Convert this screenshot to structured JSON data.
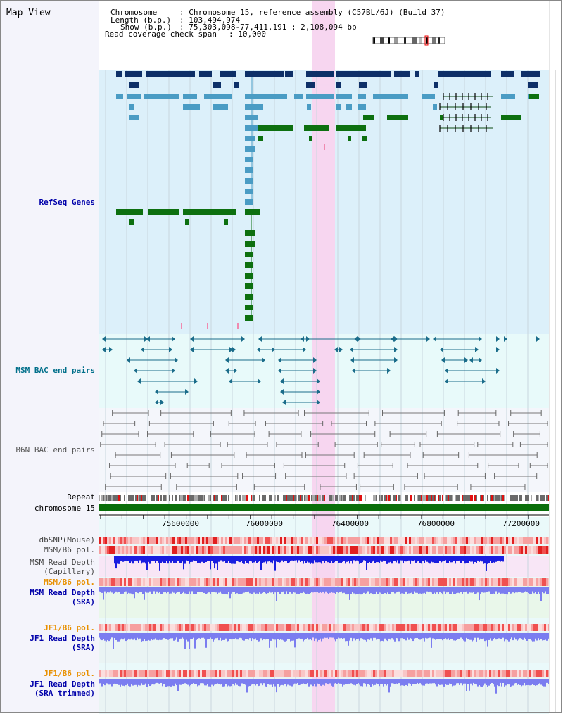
{
  "page": {
    "title": "Map View"
  },
  "info": {
    "chromosome_label": "Chromosome",
    "chromosome_value": ": Chromosome 15, reference assembly (C57BL/6J) (Build 37)",
    "length_label": "Length (b.p.)",
    "length_value": ": 103,494,974",
    "show_label": "Show (b.p.)",
    "show_value": ": 75,303,098-77,411,191 : 2,108,094 bp",
    "coverage_label": "Read coverage check span",
    "coverage_value": ": 10,000"
  },
  "tracks": {
    "refseq": "RefSeq Genes",
    "msm_bac": "MSM BAC end pairs",
    "b6n_bac": "B6N BAC end pairs",
    "repeat": "Repeat",
    "chromosome": "chromosome 15",
    "dbsnp": "dbSNP(Mouse)",
    "msm_b6_pol": "MSM/B6 pol.",
    "msm_read_depth_cap_1": "MSM Read Depth",
    "msm_read_depth_cap_2": "(Capillary)",
    "msm_b6_pol_2": "MSM/B6 pol.",
    "msm_read_depth_sra_1": "MSM Read Depth",
    "msm_read_depth_sra_2": "(SRA)",
    "jf1_b6_pol": "JF1/B6 pol.",
    "jf1_read_depth_sra_1": "JF1 Read Depth",
    "jf1_read_depth_sra_2": "(SRA)",
    "jf1_b6_pol_2": "JF1/B6 pol.",
    "jf1_read_depth_trim_1": "JF1 Read Depth",
    "jf1_read_depth_trim_2": "(SRA trimmed)"
  },
  "axis": {
    "ticks": [
      "75600000",
      "76000000",
      "76400000",
      "76800000",
      "77200000"
    ]
  },
  "colors": {
    "refseq_bg": "#dcf0fa",
    "bac_bg": "#e8fafa",
    "b6n_bg": "#f4f6fb",
    "highlight": "#f7d6f0",
    "gene_dark": "#0e3068",
    "gene_mid": "#4a9cc4",
    "gene_green": "#0d7010",
    "bac_line": "#1a6c8a",
    "b6n_line": "#777777",
    "chrom_green": "#0a6e0a",
    "depth_blue": "#1a1ee0",
    "depth_light": "#7b7df0",
    "label_blue": "#0000aa",
    "label_teal": "#006f8a",
    "label_orange": "#e89000",
    "label_gray": "#444444"
  }
}
